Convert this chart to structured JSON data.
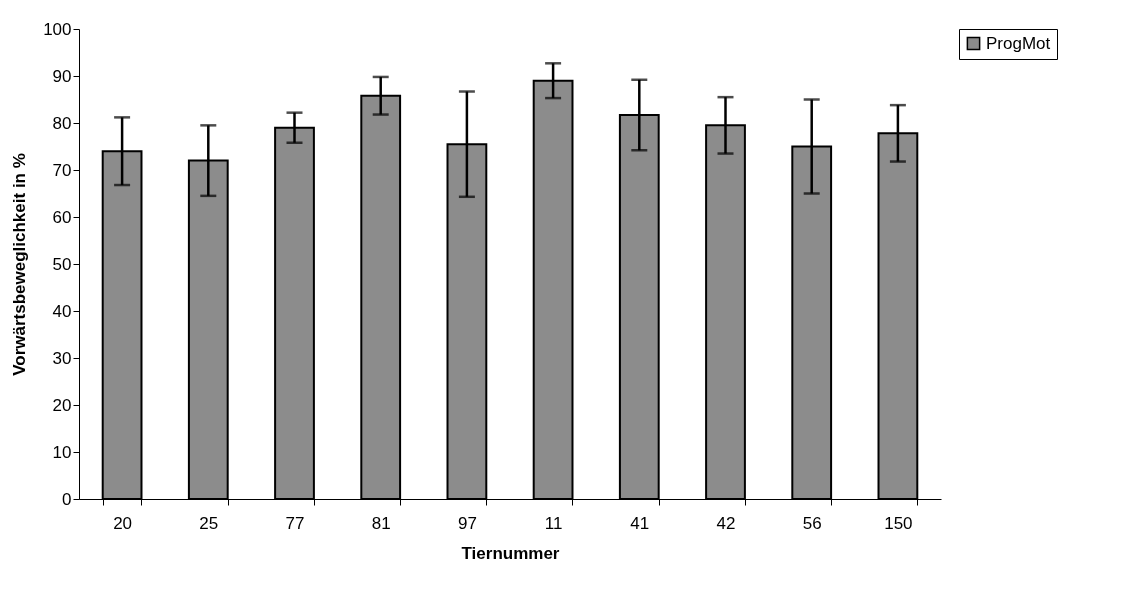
{
  "chart_data": {
    "type": "bar",
    "xlabel": "Tiernummer",
    "ylabel": "Vorwärtsbeweglichkeit in %",
    "categories": [
      "20",
      "25",
      "77",
      "81",
      "97",
      "11",
      "41",
      "42",
      "56",
      "150"
    ],
    "series": [
      {
        "name": "ProgMot",
        "color": "#8c8c8c",
        "values": [
          74,
          72,
          79,
          85.8,
          75.5,
          89,
          81.7,
          79.5,
          75,
          77.8
        ],
        "errors": [
          7.2,
          7.5,
          3.2,
          4,
          11.2,
          3.7,
          7.5,
          6,
          10,
          6
        ]
      }
    ],
    "ylim": [
      0,
      100
    ],
    "yticks": [
      0,
      10,
      20,
      30,
      40,
      50,
      60,
      70,
      80,
      90,
      100
    ],
    "grid": false,
    "legend": "right"
  }
}
